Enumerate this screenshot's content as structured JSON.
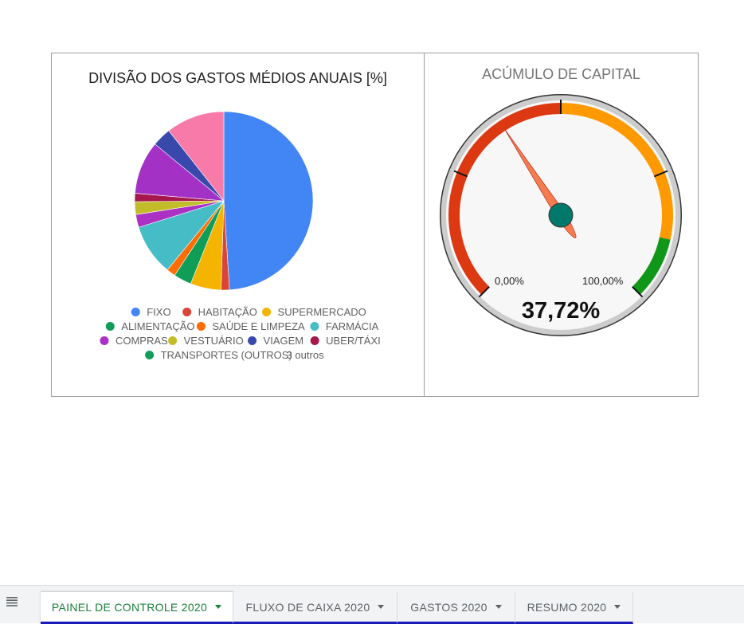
{
  "pie_chart": {
    "title": "DIVISÃO DOS GASTOS MÉDIOS ANUAIS [%]",
    "more_label": "3 outros"
  },
  "gauge_chart": {
    "title": "ACÚMULO DE CAPITAL",
    "min_label": "0,00%",
    "max_label": "100,00%",
    "value_label": "37,72%",
    "value": 37.72,
    "min": 0,
    "max": 100,
    "bands": [
      {
        "from": 0,
        "to": 50,
        "color": "#dc3912"
      },
      {
        "from": 50,
        "to": 88,
        "color": "#ff9900"
      },
      {
        "from": 88,
        "to": 100,
        "color": "#109618"
      }
    ],
    "needle_color": "#f57c4e",
    "hub_color": "#00796b"
  },
  "chart_data": [
    {
      "type": "pie",
      "title": "DIVISÃO DOS GASTOS MÉDIOS ANUAIS [%]",
      "legend_position": "bottom",
      "slices": [
        {
          "label": "FIXO",
          "value": 48.5,
          "color": "#4285f4"
        },
        {
          "label": "HABITAÇÃO",
          "value": 1.5,
          "color": "#db4437"
        },
        {
          "label": "SUPERMERCADO",
          "value": 5.5,
          "color": "#f4b400"
        },
        {
          "label": "ALIMENTAÇÃO",
          "value": 3.2,
          "color": "#0f9d58"
        },
        {
          "label": "SAÚDE E LIMPEZA",
          "value": 1.6,
          "color": "#ff6d00"
        },
        {
          "label": "FARMÁCIA",
          "value": 9.2,
          "color": "#46bdc6"
        },
        {
          "label": "COMPRAS",
          "value": 2.3,
          "color": "#ab30c4"
        },
        {
          "label": "VESTUÁRIO",
          "value": 2.3,
          "color": "#c3bc2a"
        },
        {
          "label": "UBER/TÁXI",
          "value": 1.5,
          "color": "#a6184d"
        },
        {
          "label": "COMPRAS",
          "value": 9.5,
          "color": "#a331c6"
        },
        {
          "label": "VIAGEM",
          "value": 3.4,
          "color": "#3949ab"
        },
        {
          "label": "3 outros",
          "value": 10.5,
          "color": "#f77aa8"
        }
      ],
      "legend": [
        {
          "label": "FIXO",
          "color": "#4285f4"
        },
        {
          "label": "HABITAÇÃO",
          "color": "#db4437"
        },
        {
          "label": "SUPERMERCADO",
          "color": "#f4b400"
        },
        {
          "label": "ALIMENTAÇÃO",
          "color": "#0f9d58"
        },
        {
          "label": "SAÚDE E LIMPEZA",
          "color": "#ff6d00"
        },
        {
          "label": "FARMÁCIA",
          "color": "#46bdc6"
        },
        {
          "label": "COMPRAS",
          "color": "#ab30c4"
        },
        {
          "label": "VESTUÁRIO",
          "color": "#c3bc2a"
        },
        {
          "label": "VIAGEM",
          "color": "#3949ab"
        },
        {
          "label": "UBER/TÁXI",
          "color": "#a6184d"
        },
        {
          "label": "TRANSPORTES (OUTROS)",
          "color": "#0f9d58"
        }
      ]
    },
    {
      "type": "gauge",
      "title": "ACÚMULO DE CAPITAL",
      "value": 37.72,
      "range": [
        0,
        100
      ]
    }
  ],
  "tabs": [
    {
      "label": "PAINEL DE CONTROLE 2020",
      "active": true
    },
    {
      "label": "FLUXO DE CAIXA 2020",
      "active": false
    },
    {
      "label": "GASTOS 2020",
      "active": false
    },
    {
      "label": "RESUMO 2020",
      "active": false
    }
  ],
  "icons": {
    "all_sheets": "list-icon",
    "tab_menu": "caret-down-icon"
  }
}
